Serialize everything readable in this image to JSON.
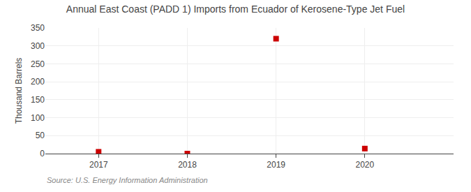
{
  "chart_data": {
    "type": "scatter",
    "title": "Annual East Coast (PADD 1) Imports from Ecuador of Kerosene-Type Jet Fuel",
    "y_label": "Thousand Barrels",
    "source": "Source: U.S. Energy Information Administration",
    "x": [
      2017,
      2018,
      2019,
      2020
    ],
    "values": [
      5,
      0,
      320,
      14
    ],
    "color": "#cc0000",
    "marker": "square",
    "xlim": [
      2016.4,
      2021.0
    ],
    "ylim": [
      0,
      350
    ],
    "xticks": [
      2017,
      2018,
      2019,
      2020
    ],
    "yticks": [
      0,
      50,
      100,
      150,
      200,
      250,
      300,
      350
    ],
    "grid": true
  }
}
